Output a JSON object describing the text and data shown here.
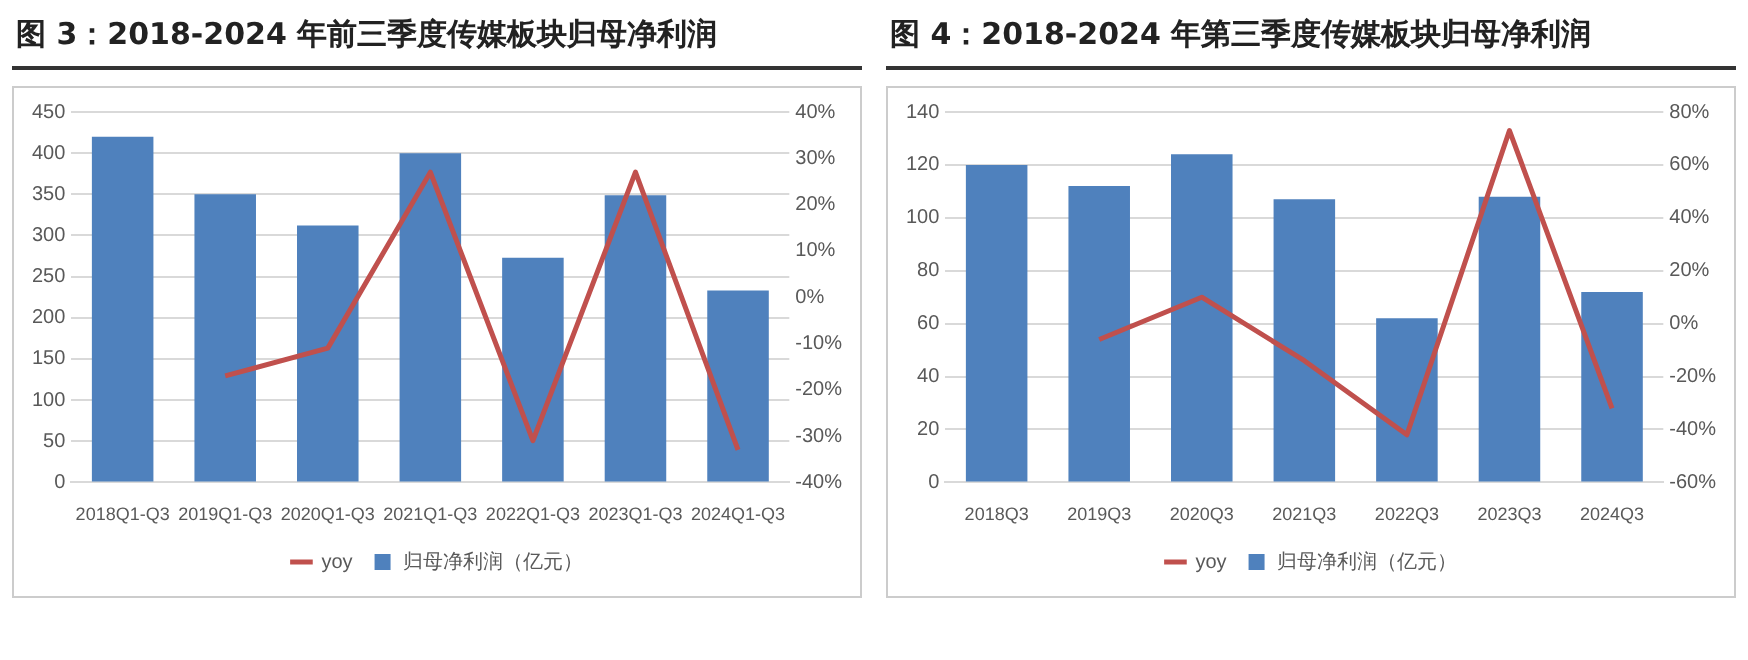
{
  "chart_data": [
    {
      "type": "bar",
      "title": "图 3：2018-2024 年前三季度传媒板块归母净利润",
      "categories": [
        "2018Q1-Q3",
        "2019Q1-Q3",
        "2020Q1-Q3",
        "2021Q1-Q3",
        "2022Q1-Q3",
        "2023Q1-Q3",
        "2024Q1-Q3"
      ],
      "series": [
        {
          "name": "归母净利润（亿元）",
          "color": "#4f81bd",
          "values": [
            420,
            350,
            312,
            400,
            273,
            349,
            233
          ]
        },
        {
          "name": "yoy",
          "type": "line",
          "axis": "y2",
          "color": "#c0504d",
          "values": [
            null,
            -17,
            -11,
            27,
            -31,
            27,
            -33
          ]
        }
      ],
      "ylim": [
        0,
        450
      ],
      "yticks": [
        0,
        50,
        100,
        150,
        200,
        250,
        300,
        350,
        400,
        450
      ],
      "y2lim": [
        -40,
        40
      ],
      "y2ticks": [
        {
          "value": -40,
          "label": "-40%"
        },
        {
          "value": -30,
          "label": "-30%"
        },
        {
          "value": -20,
          "label": "-20%"
        },
        {
          "value": -10,
          "label": "-10%"
        },
        {
          "value": 0,
          "label": "0%"
        },
        {
          "value": 10,
          "label": "10%"
        },
        {
          "value": 20,
          "label": "20%"
        },
        {
          "value": 30,
          "label": "30%"
        },
        {
          "value": 40,
          "label": "40%"
        }
      ],
      "grid": "y",
      "legend": "bottom",
      "marker": "none"
    },
    {
      "type": "bar",
      "title": "图 4：2018-2024 年第三季度传媒板块归母净利润",
      "categories": [
        "2018Q3",
        "2019Q3",
        "2020Q3",
        "2021Q3",
        "2022Q3",
        "2023Q3",
        "2024Q3"
      ],
      "series": [
        {
          "name": "归母净利润（亿元）",
          "color": "#4f81bd",
          "values": [
            120,
            112,
            124,
            107,
            62,
            108,
            72
          ]
        },
        {
          "name": "yoy",
          "type": "line",
          "axis": "y2",
          "color": "#c0504d",
          "values": [
            null,
            -6,
            10,
            -14,
            -42,
            73,
            -32
          ]
        }
      ],
      "ylim": [
        0,
        140
      ],
      "yticks": [
        0,
        20,
        40,
        60,
        80,
        100,
        120,
        140
      ],
      "y2lim": [
        -60,
        80
      ],
      "y2ticks": [
        {
          "value": -60,
          "label": "-60%"
        },
        {
          "value": -40,
          "label": "-40%"
        },
        {
          "value": -20,
          "label": "-20%"
        },
        {
          "value": 0,
          "label": "0%"
        },
        {
          "value": 20,
          "label": "20%"
        },
        {
          "value": 40,
          "label": "40%"
        },
        {
          "value": 60,
          "label": "60%"
        },
        {
          "value": 80,
          "label": "80%"
        }
      ],
      "grid": "y",
      "legend": "bottom",
      "marker": "none"
    }
  ]
}
